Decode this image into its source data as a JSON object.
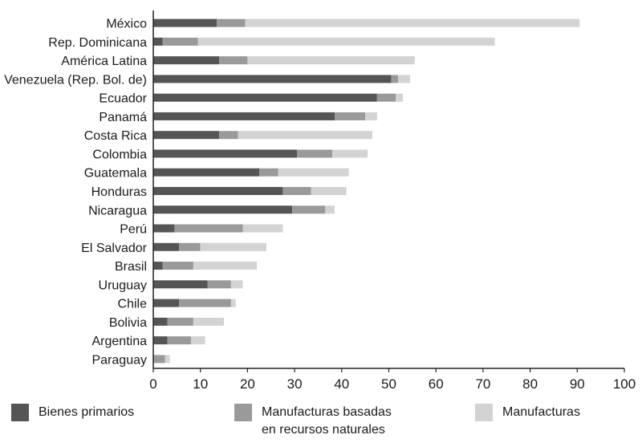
{
  "chart_data": {
    "type": "bar",
    "orientation": "horizontal",
    "stacked": true,
    "categories": [
      "México",
      "Rep. Dominicana",
      "América Latina",
      "Venezuela (Rep. Bol. de)",
      "Ecuador",
      "Panamá",
      "Costa Rica",
      "Colombia",
      "Guatemala",
      "Honduras",
      "Nicaragua",
      "Perú",
      "El Salvador",
      "Brasil",
      "Uruguay",
      "Chile",
      "Bolivia",
      "Argentina",
      "Paraguay"
    ],
    "series": [
      {
        "name": "Bienes primarios",
        "color": "#555555",
        "values": [
          13.5,
          2.0,
          14.0,
          50.5,
          47.5,
          38.5,
          14.0,
          30.5,
          22.5,
          27.5,
          29.5,
          4.5,
          5.5,
          2.0,
          11.5,
          5.5,
          3.0,
          3.0,
          0.0
        ]
      },
      {
        "name": "Manufacturas basadas en recursos naturales",
        "color": "#9a9a9a",
        "values": [
          6.0,
          7.5,
          6.0,
          1.5,
          4.0,
          6.5,
          4.0,
          7.5,
          4.0,
          6.0,
          7.0,
          14.5,
          4.5,
          6.5,
          5.0,
          11.0,
          5.5,
          5.0,
          2.5
        ]
      },
      {
        "name": "Manufacturas",
        "color": "#d3d3d3",
        "values": [
          71.0,
          63.0,
          35.5,
          2.5,
          1.5,
          2.5,
          28.5,
          7.5,
          15.0,
          7.5,
          2.0,
          8.5,
          14.0,
          13.5,
          2.5,
          1.0,
          6.5,
          3.0,
          1.0
        ]
      }
    ],
    "xlim": [
      0,
      100
    ],
    "xticks": [
      "0",
      "10",
      "20",
      "30",
      "40",
      "50",
      "60",
      "70",
      "80",
      "90",
      "100"
    ],
    "legend_position": "bottom",
    "grid": false
  },
  "legend": {
    "primary_label": "Bienes primarios",
    "natural_label_line1": "Manufacturas basadas",
    "natural_label_line2": "en recursos naturales",
    "manufacturas_label": "Manufacturas"
  }
}
